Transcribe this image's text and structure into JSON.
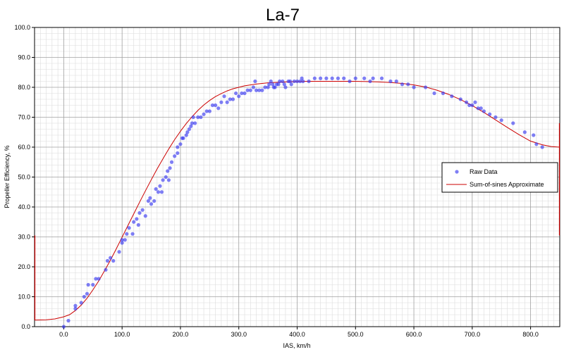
{
  "colors": {
    "points": "#3b3bf0",
    "fit_line": "#cc0000",
    "grid_major": "#a0a0a0",
    "grid_minor": "#dcdcdc",
    "axis": "#000000"
  },
  "chart_data": {
    "type": "scatter",
    "title": "La-7",
    "xlabel": "IAS, km/h",
    "ylabel": "Propeller Efficiency, %",
    "xlim": [
      -50,
      850
    ],
    "ylim": [
      0,
      100
    ],
    "grid": true,
    "legend_position": "right",
    "x_ticks": [
      "0.0",
      "100.0",
      "200.0",
      "300.0",
      "400.0",
      "500.0",
      "600.0",
      "700.0",
      "800.0"
    ],
    "y_ticks": [
      "0.0",
      "10.0",
      "20.0",
      "30.0",
      "40.0",
      "50.0",
      "60.0",
      "70.0",
      "80.0",
      "90.0",
      "100.0"
    ],
    "legend": [
      {
        "label": "Raw Data",
        "kind": "marker"
      },
      {
        "label": "Sum-of-sines Approximate",
        "kind": "line"
      }
    ],
    "series": [
      {
        "name": "Raw Data",
        "kind": "scatter",
        "points": [
          [
            0,
            0
          ],
          [
            8,
            2
          ],
          [
            20,
            6
          ],
          [
            20,
            7
          ],
          [
            30,
            8
          ],
          [
            35,
            10
          ],
          [
            40,
            11
          ],
          [
            42,
            14
          ],
          [
            50,
            14
          ],
          [
            55,
            16
          ],
          [
            60,
            16
          ],
          [
            72,
            19
          ],
          [
            75,
            22
          ],
          [
            80,
            23
          ],
          [
            85,
            22
          ],
          [
            95,
            25
          ],
          [
            100,
            28
          ],
          [
            100,
            29
          ],
          [
            105,
            29
          ],
          [
            108,
            31
          ],
          [
            112,
            33
          ],
          [
            118,
            31
          ],
          [
            120,
            35
          ],
          [
            125,
            36
          ],
          [
            128,
            34
          ],
          [
            130,
            38
          ],
          [
            135,
            39
          ],
          [
            140,
            37
          ],
          [
            145,
            42
          ],
          [
            148,
            43
          ],
          [
            150,
            41
          ],
          [
            155,
            42
          ],
          [
            158,
            46
          ],
          [
            162,
            45
          ],
          [
            165,
            47
          ],
          [
            168,
            45
          ],
          [
            170,
            49
          ],
          [
            175,
            50
          ],
          [
            178,
            52
          ],
          [
            180,
            49
          ],
          [
            182,
            53
          ],
          [
            185,
            55
          ],
          [
            190,
            57
          ],
          [
            195,
            58
          ],
          [
            195,
            60
          ],
          [
            200,
            61
          ],
          [
            203,
            63
          ],
          [
            205,
            63
          ],
          [
            210,
            64
          ],
          [
            212,
            65
          ],
          [
            215,
            66
          ],
          [
            218,
            67
          ],
          [
            220,
            68
          ],
          [
            222,
            70
          ],
          [
            225,
            68
          ],
          [
            230,
            70
          ],
          [
            235,
            70
          ],
          [
            240,
            71
          ],
          [
            245,
            72
          ],
          [
            250,
            72
          ],
          [
            255,
            74
          ],
          [
            260,
            74
          ],
          [
            265,
            73
          ],
          [
            270,
            75
          ],
          [
            275,
            77
          ],
          [
            280,
            75
          ],
          [
            285,
            76
          ],
          [
            290,
            76
          ],
          [
            295,
            78
          ],
          [
            300,
            77
          ],
          [
            305,
            78
          ],
          [
            310,
            78
          ],
          [
            315,
            79
          ],
          [
            320,
            79
          ],
          [
            325,
            80
          ],
          [
            328,
            82
          ],
          [
            330,
            79
          ],
          [
            335,
            79
          ],
          [
            340,
            79
          ],
          [
            345,
            80
          ],
          [
            350,
            80
          ],
          [
            352,
            81
          ],
          [
            355,
            82
          ],
          [
            358,
            81
          ],
          [
            360,
            80
          ],
          [
            362,
            80
          ],
          [
            365,
            81
          ],
          [
            368,
            81
          ],
          [
            370,
            82
          ],
          [
            375,
            82
          ],
          [
            378,
            81
          ],
          [
            380,
            80
          ],
          [
            385,
            82
          ],
          [
            388,
            82
          ],
          [
            390,
            81
          ],
          [
            395,
            82
          ],
          [
            400,
            82
          ],
          [
            405,
            82
          ],
          [
            408,
            83
          ],
          [
            410,
            82
          ],
          [
            420,
            82
          ],
          [
            430,
            83
          ],
          [
            440,
            83
          ],
          [
            450,
            83
          ],
          [
            460,
            83
          ],
          [
            470,
            83
          ],
          [
            480,
            83
          ],
          [
            490,
            82
          ],
          [
            500,
            83
          ],
          [
            515,
            83
          ],
          [
            525,
            82
          ],
          [
            530,
            83
          ],
          [
            545,
            83
          ],
          [
            560,
            82
          ],
          [
            570,
            82
          ],
          [
            580,
            81
          ],
          [
            590,
            81
          ],
          [
            600,
            80
          ],
          [
            620,
            80
          ],
          [
            635,
            78
          ],
          [
            650,
            78
          ],
          [
            665,
            77
          ],
          [
            680,
            76
          ],
          [
            690,
            75
          ],
          [
            695,
            74
          ],
          [
            700,
            74
          ],
          [
            705,
            75
          ],
          [
            710,
            73
          ],
          [
            715,
            73
          ],
          [
            720,
            72
          ],
          [
            730,
            71
          ],
          [
            740,
            70
          ],
          [
            750,
            69
          ],
          [
            770,
            68
          ],
          [
            790,
            65
          ],
          [
            805,
            64
          ],
          [
            810,
            61
          ],
          [
            820,
            60
          ]
        ]
      },
      {
        "name": "Sum-of-sines Approximate",
        "kind": "line",
        "points": [
          [
            -50,
            2.2
          ],
          [
            -30,
            2.3
          ],
          [
            -15,
            2.6
          ],
          [
            0,
            3.3
          ],
          [
            10,
            4
          ],
          [
            20,
            5.4
          ],
          [
            30,
            7.2
          ],
          [
            40,
            9.5
          ],
          [
            50,
            12.3
          ],
          [
            60,
            15.3
          ],
          [
            70,
            18.7
          ],
          [
            80,
            22.2
          ],
          [
            90,
            26
          ],
          [
            100,
            29.9
          ],
          [
            110,
            33.8
          ],
          [
            120,
            37.7
          ],
          [
            130,
            41.6
          ],
          [
            140,
            45.4
          ],
          [
            150,
            49.1
          ],
          [
            160,
            52.7
          ],
          [
            170,
            56.1
          ],
          [
            180,
            59.4
          ],
          [
            190,
            62.5
          ],
          [
            200,
            65.3
          ],
          [
            210,
            67.9
          ],
          [
            220,
            70.2
          ],
          [
            230,
            72.3
          ],
          [
            240,
            74.1
          ],
          [
            250,
            75.6
          ],
          [
            260,
            76.9
          ],
          [
            270,
            77.9
          ],
          [
            280,
            78.8
          ],
          [
            290,
            79.5
          ],
          [
            300,
            80
          ],
          [
            310,
            80.5
          ],
          [
            320,
            80.8
          ],
          [
            330,
            81.1
          ],
          [
            340,
            81.3
          ],
          [
            350,
            81.5
          ],
          [
            360,
            81.6
          ],
          [
            380,
            81.8
          ],
          [
            400,
            81.9
          ],
          [
            420,
            82
          ],
          [
            450,
            82
          ],
          [
            480,
            82
          ],
          [
            500,
            82
          ],
          [
            520,
            81.9
          ],
          [
            540,
            81.8
          ],
          [
            560,
            81.6
          ],
          [
            580,
            81.3
          ],
          [
            600,
            80.8
          ],
          [
            620,
            80.1
          ],
          [
            640,
            79
          ],
          [
            660,
            77.6
          ],
          [
            680,
            75.9
          ],
          [
            700,
            73.9
          ],
          [
            720,
            71.6
          ],
          [
            740,
            69.1
          ],
          [
            760,
            66.6
          ],
          [
            780,
            64.2
          ],
          [
            800,
            62
          ],
          [
            820,
            60.8
          ],
          [
            835,
            60.2
          ],
          [
            850,
            60
          ]
        ]
      }
    ]
  }
}
